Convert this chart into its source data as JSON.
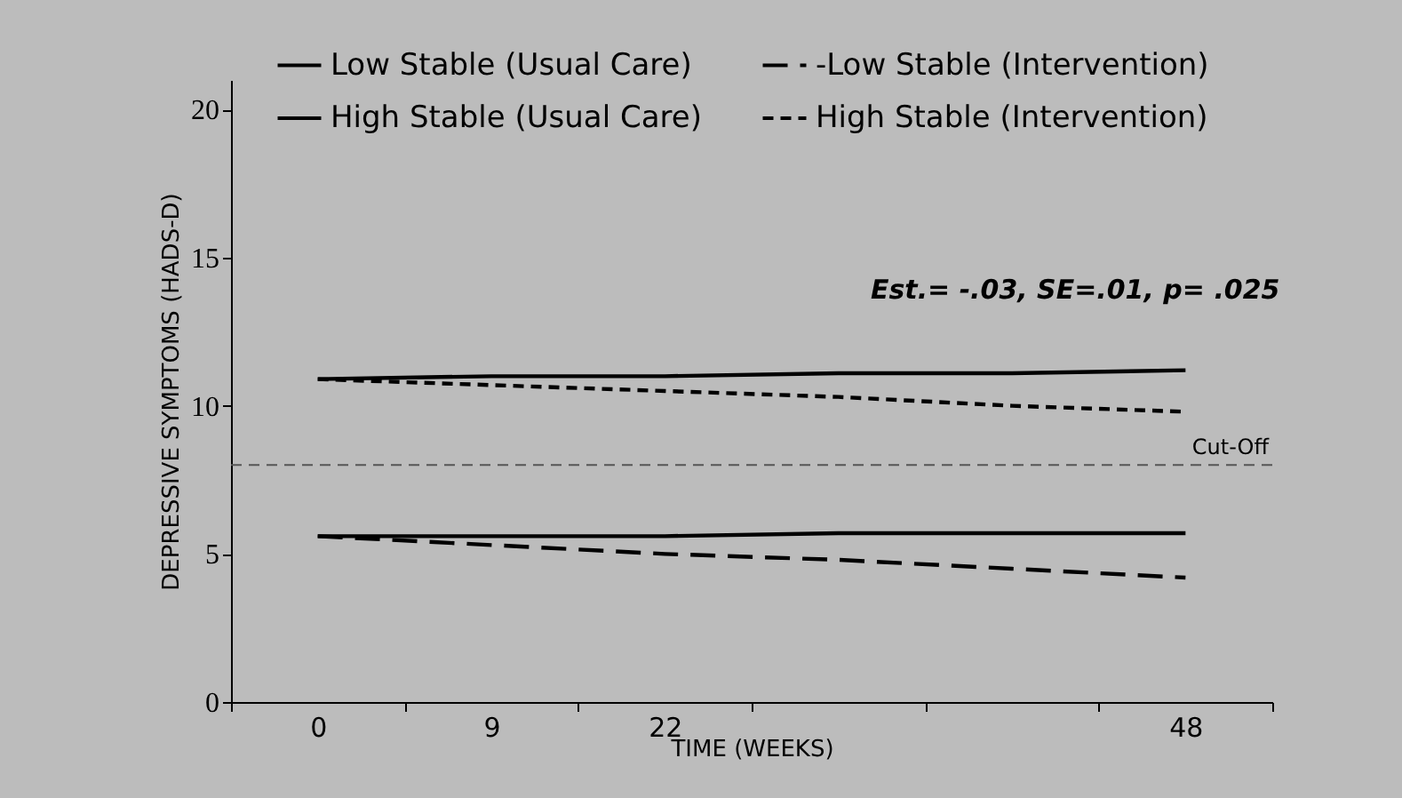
{
  "chart_data": {
    "type": "line",
    "xlabel": "TIME (WEEKS)",
    "ylabel": "DEPRESSIVE SYMPTOMS (HADS-D)",
    "categories": [
      "0",
      "9",
      "22",
      null,
      null,
      "48"
    ],
    "series": [
      {
        "name": "Low Stable (Usual Care)",
        "color": "#000000",
        "line_style": "solid",
        "values": [
          5.6,
          5.6,
          5.6,
          5.7,
          5.7,
          5.7
        ]
      },
      {
        "name": "-Low Stable (Intervention)",
        "color": "#000000",
        "line_style": "dashed",
        "values": [
          5.6,
          5.3,
          5.0,
          4.8,
          4.5,
          4.2
        ]
      },
      {
        "name": "High Stable (Usual Care)",
        "color": "#000000",
        "line_style": "solid",
        "values": [
          10.9,
          11.0,
          11.0,
          11.1,
          11.1,
          11.2
        ]
      },
      {
        "name": "High Stable (Intervention)",
        "color": "#000000",
        "line_style": "dotted",
        "values": [
          10.9,
          10.7,
          10.5,
          10.3,
          10.0,
          9.8
        ]
      }
    ],
    "ylim": [
      0,
      21
    ],
    "yticks": [
      0,
      5,
      10,
      15,
      20
    ],
    "grid": false,
    "legend": "top",
    "ref_lines": [
      {
        "axis": "y",
        "value": 8,
        "label": "Cut-Off",
        "color": "#555555",
        "line_style": "dotted"
      }
    ],
    "annotations": [
      "Est.= -.03, SE=.01, p= .025"
    ]
  }
}
